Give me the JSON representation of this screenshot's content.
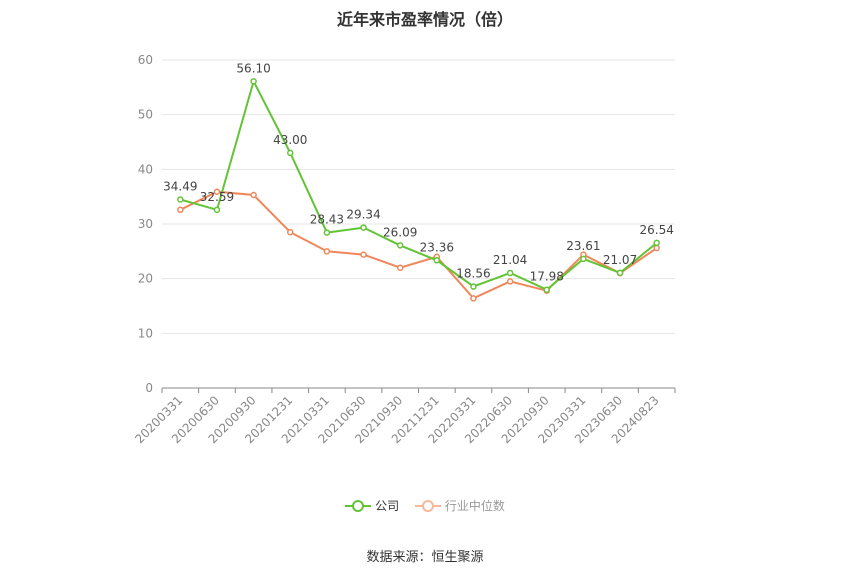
{
  "chart_data": {
    "type": "line",
    "title": "近年来市盈率情况（倍）",
    "categories": [
      "20200331",
      "20200630",
      "20200930",
      "20201231",
      "20210331",
      "20210630",
      "20210930",
      "20211231",
      "20220331",
      "20220630",
      "20220930",
      "20230331",
      "20230630",
      "20240823"
    ],
    "series": [
      {
        "name": "公司",
        "color": "#62c435",
        "values": [
          34.49,
          32.59,
          56.1,
          43.0,
          28.43,
          29.34,
          26.09,
          23.36,
          18.56,
          21.04,
          17.98,
          23.61,
          21.07,
          26.54
        ],
        "labels": [
          "34.49",
          "32.59",
          "56.10",
          "43.00",
          "28.43",
          "29.34",
          "26.09",
          "23.36",
          "18.56",
          "21.04",
          "17.98",
          "23.61",
          "21.07",
          "26.54"
        ]
      },
      {
        "name": "行业中位数",
        "color": "#f0875a",
        "values": [
          32.6,
          35.9,
          35.3,
          28.5,
          25.0,
          24.4,
          22.0,
          24.0,
          16.4,
          19.5,
          17.8,
          24.4,
          21.0,
          25.6
        ]
      }
    ],
    "ylim": [
      0,
      60
    ],
    "yticks": [
      0,
      10,
      20,
      30,
      40,
      50,
      60
    ],
    "grid": true,
    "legend": "bottom-center"
  },
  "source": "数据来源：恒生聚源"
}
